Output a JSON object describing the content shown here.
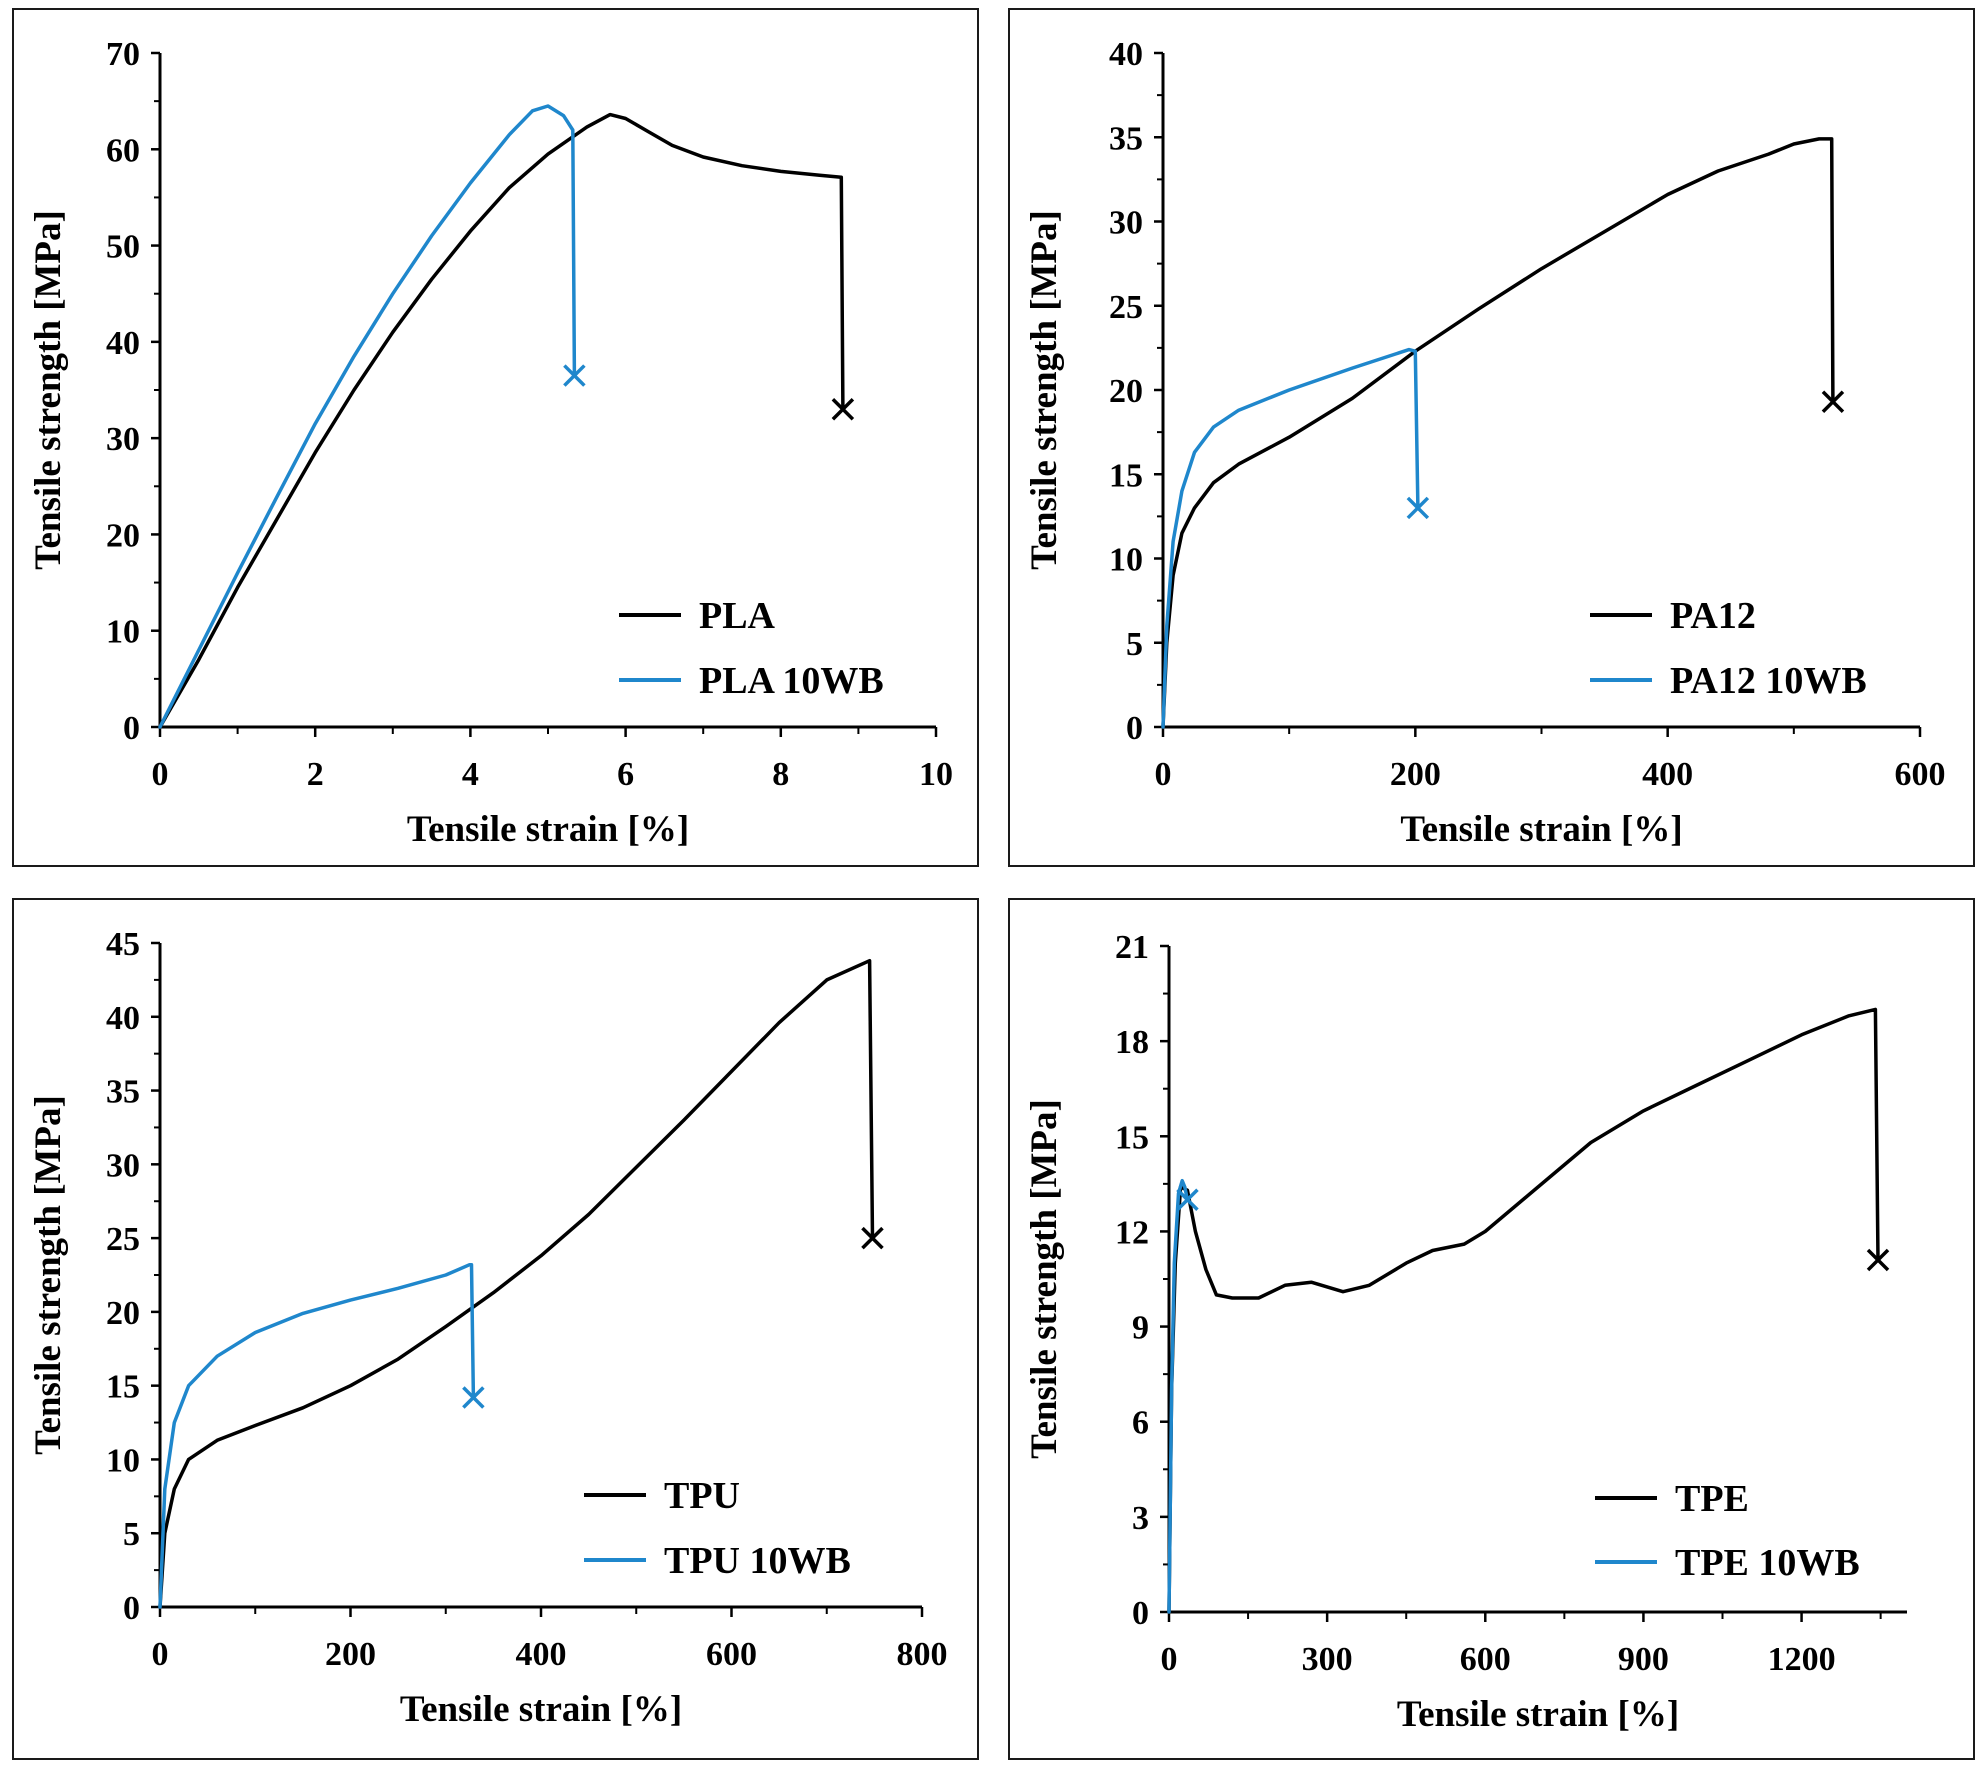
{
  "figure": {
    "colors": {
      "series_black": "#000000",
      "series_blue": "#1f87cc",
      "axis": "#000000"
    }
  },
  "chart_data": [
    {
      "id": "pla",
      "type": "line",
      "title": "",
      "xlabel": "Tensile strain [%]",
      "ylabel": "Tensile strength [MPa]",
      "xlim": [
        0,
        10
      ],
      "ylim": [
        0,
        70
      ],
      "xticks": [
        0,
        2,
        4,
        6,
        8,
        10
      ],
      "yticks": [
        0,
        10,
        20,
        30,
        40,
        50,
        60,
        70
      ],
      "legend_position": "bottom-right",
      "series": [
        {
          "name": "PLA",
          "color": "#000000",
          "points": [
            [
              0,
              0
            ],
            [
              0.5,
              7
            ],
            [
              1,
              14.5
            ],
            [
              1.5,
              21.5
            ],
            [
              2,
              28.5
            ],
            [
              2.5,
              35
            ],
            [
              3,
              41
            ],
            [
              3.5,
              46.5
            ],
            [
              4,
              51.5
            ],
            [
              4.5,
              56
            ],
            [
              5,
              59.5
            ],
            [
              5.5,
              62.3
            ],
            [
              5.8,
              63.6
            ],
            [
              6,
              63.2
            ],
            [
              6.3,
              61.8
            ],
            [
              6.6,
              60.4
            ],
            [
              7,
              59.2
            ],
            [
              7.5,
              58.3
            ],
            [
              8,
              57.7
            ],
            [
              8.5,
              57.3
            ],
            [
              8.78,
              57.1
            ],
            [
              8.8,
              33
            ]
          ],
          "break": [
            8.8,
            33
          ]
        },
        {
          "name": "PLA 10WB",
          "color": "#1f87cc",
          "points": [
            [
              0,
              0
            ],
            [
              0.5,
              8
            ],
            [
              1,
              16
            ],
            [
              1.5,
              23.8
            ],
            [
              2,
              31.5
            ],
            [
              2.5,
              38.5
            ],
            [
              3,
              45
            ],
            [
              3.5,
              51
            ],
            [
              4,
              56.5
            ],
            [
              4.5,
              61.5
            ],
            [
              4.8,
              64
            ],
            [
              5,
              64.5
            ],
            [
              5.2,
              63.5
            ],
            [
              5.32,
              62
            ],
            [
              5.34,
              36.5
            ]
          ],
          "break": [
            5.34,
            36.5
          ]
        }
      ]
    },
    {
      "id": "pa12",
      "type": "line",
      "title": "",
      "xlabel": "Tensile strain [%]",
      "ylabel": "Tensile strength [MPa]",
      "xlim": [
        0,
        600
      ],
      "ylim": [
        0,
        40
      ],
      "xticks": [
        0,
        200,
        400,
        600
      ],
      "yticks": [
        0,
        5,
        10,
        15,
        20,
        25,
        30,
        35,
        40
      ],
      "legend_position": "bottom-right",
      "series": [
        {
          "name": "PA12",
          "color": "#000000",
          "points": [
            [
              0,
              0
            ],
            [
              3,
              5
            ],
            [
              8,
              9
            ],
            [
              15,
              11.5
            ],
            [
              25,
              13
            ],
            [
              40,
              14.5
            ],
            [
              60,
              15.6
            ],
            [
              100,
              17.2
            ],
            [
              150,
              19.5
            ],
            [
              200,
              22.3
            ],
            [
              250,
              24.8
            ],
            [
              300,
              27.2
            ],
            [
              350,
              29.4
            ],
            [
              400,
              31.6
            ],
            [
              440,
              33
            ],
            [
              480,
              34
            ],
            [
              500,
              34.6
            ],
            [
              520,
              34.9
            ],
            [
              530,
              34.9
            ],
            [
              531,
              19.3
            ]
          ],
          "break": [
            531,
            19.3
          ]
        },
        {
          "name": "PA12 10WB",
          "color": "#1f87cc",
          "points": [
            [
              0,
              0
            ],
            [
              3,
              6
            ],
            [
              8,
              11
            ],
            [
              15,
              14
            ],
            [
              25,
              16.3
            ],
            [
              40,
              17.8
            ],
            [
              60,
              18.8
            ],
            [
              100,
              20
            ],
            [
              150,
              21.3
            ],
            [
              195,
              22.4
            ],
            [
              200,
              22.3
            ],
            [
              202,
              13
            ]
          ],
          "break": [
            202,
            13
          ]
        }
      ]
    },
    {
      "id": "tpu",
      "type": "line",
      "title": "",
      "xlabel": "Tensile strain [%]",
      "ylabel": "Tensile strength [MPa]",
      "xlim": [
        0,
        800
      ],
      "ylim": [
        0,
        45
      ],
      "xticks": [
        0,
        200,
        400,
        600,
        800
      ],
      "yticks": [
        0,
        5,
        10,
        15,
        20,
        25,
        30,
        35,
        40,
        45
      ],
      "legend_position": "bottom-right",
      "series": [
        {
          "name": "TPU",
          "color": "#000000",
          "points": [
            [
              0,
              0
            ],
            [
              5,
              5
            ],
            [
              15,
              8
            ],
            [
              30,
              10
            ],
            [
              60,
              11.3
            ],
            [
              100,
              12.3
            ],
            [
              150,
              13.5
            ],
            [
              200,
              15
            ],
            [
              250,
              16.8
            ],
            [
              300,
              19
            ],
            [
              350,
              21.3
            ],
            [
              400,
              23.8
            ],
            [
              450,
              26.6
            ],
            [
              500,
              29.8
            ],
            [
              550,
              33
            ],
            [
              600,
              36.3
            ],
            [
              650,
              39.6
            ],
            [
              700,
              42.5
            ],
            [
              745,
              43.8
            ],
            [
              748,
              25
            ]
          ],
          "break": [
            748,
            25
          ]
        },
        {
          "name": "TPU 10WB",
          "color": "#1f87cc",
          "points": [
            [
              0,
              0
            ],
            [
              5,
              8
            ],
            [
              15,
              12.5
            ],
            [
              30,
              15
            ],
            [
              60,
              17
            ],
            [
              100,
              18.6
            ],
            [
              150,
              19.9
            ],
            [
              200,
              20.8
            ],
            [
              250,
              21.6
            ],
            [
              300,
              22.5
            ],
            [
              325,
              23.2
            ],
            [
              327,
              23.2
            ],
            [
              329,
              14.2
            ]
          ],
          "break": [
            329,
            14.2
          ]
        }
      ]
    },
    {
      "id": "tpe",
      "type": "line",
      "title": "",
      "xlabel": "Tensile strain [%]",
      "ylabel": "Tensile strength [MPa]",
      "xlim": [
        0,
        1400
      ],
      "ylim": [
        0,
        21
      ],
      "xticks": [
        0,
        300,
        600,
        900,
        1200
      ],
      "yticks": [
        0,
        3,
        6,
        9,
        12,
        15,
        18,
        21
      ],
      "legend_position": "bottom-right",
      "series": [
        {
          "name": "TPE",
          "color": "#000000",
          "points": [
            [
              0,
              0
            ],
            [
              5,
              7
            ],
            [
              12,
              11
            ],
            [
              22,
              13.4
            ],
            [
              35,
              13.3
            ],
            [
              50,
              12
            ],
            [
              70,
              10.8
            ],
            [
              90,
              10
            ],
            [
              120,
              9.9
            ],
            [
              170,
              9.9
            ],
            [
              220,
              10.3
            ],
            [
              270,
              10.4
            ],
            [
              330,
              10.1
            ],
            [
              380,
              10.3
            ],
            [
              450,
              11
            ],
            [
              500,
              11.4
            ],
            [
              560,
              11.6
            ],
            [
              600,
              12
            ],
            [
              700,
              13.4
            ],
            [
              800,
              14.8
            ],
            [
              900,
              15.8
            ],
            [
              1000,
              16.6
            ],
            [
              1100,
              17.4
            ],
            [
              1200,
              18.2
            ],
            [
              1290,
              18.8
            ],
            [
              1340,
              19
            ],
            [
              1345,
              11.1
            ]
          ],
          "break": [
            1345,
            11.1
          ]
        },
        {
          "name": "TPE 10WB",
          "color": "#1f87cc",
          "points": [
            [
              0,
              0
            ],
            [
              5,
              7
            ],
            [
              10,
              11
            ],
            [
              18,
              13.2
            ],
            [
              25,
              13.6
            ],
            [
              30,
              13.4
            ],
            [
              35,
              13
            ]
          ],
          "break": [
            35,
            13
          ]
        }
      ]
    }
  ]
}
